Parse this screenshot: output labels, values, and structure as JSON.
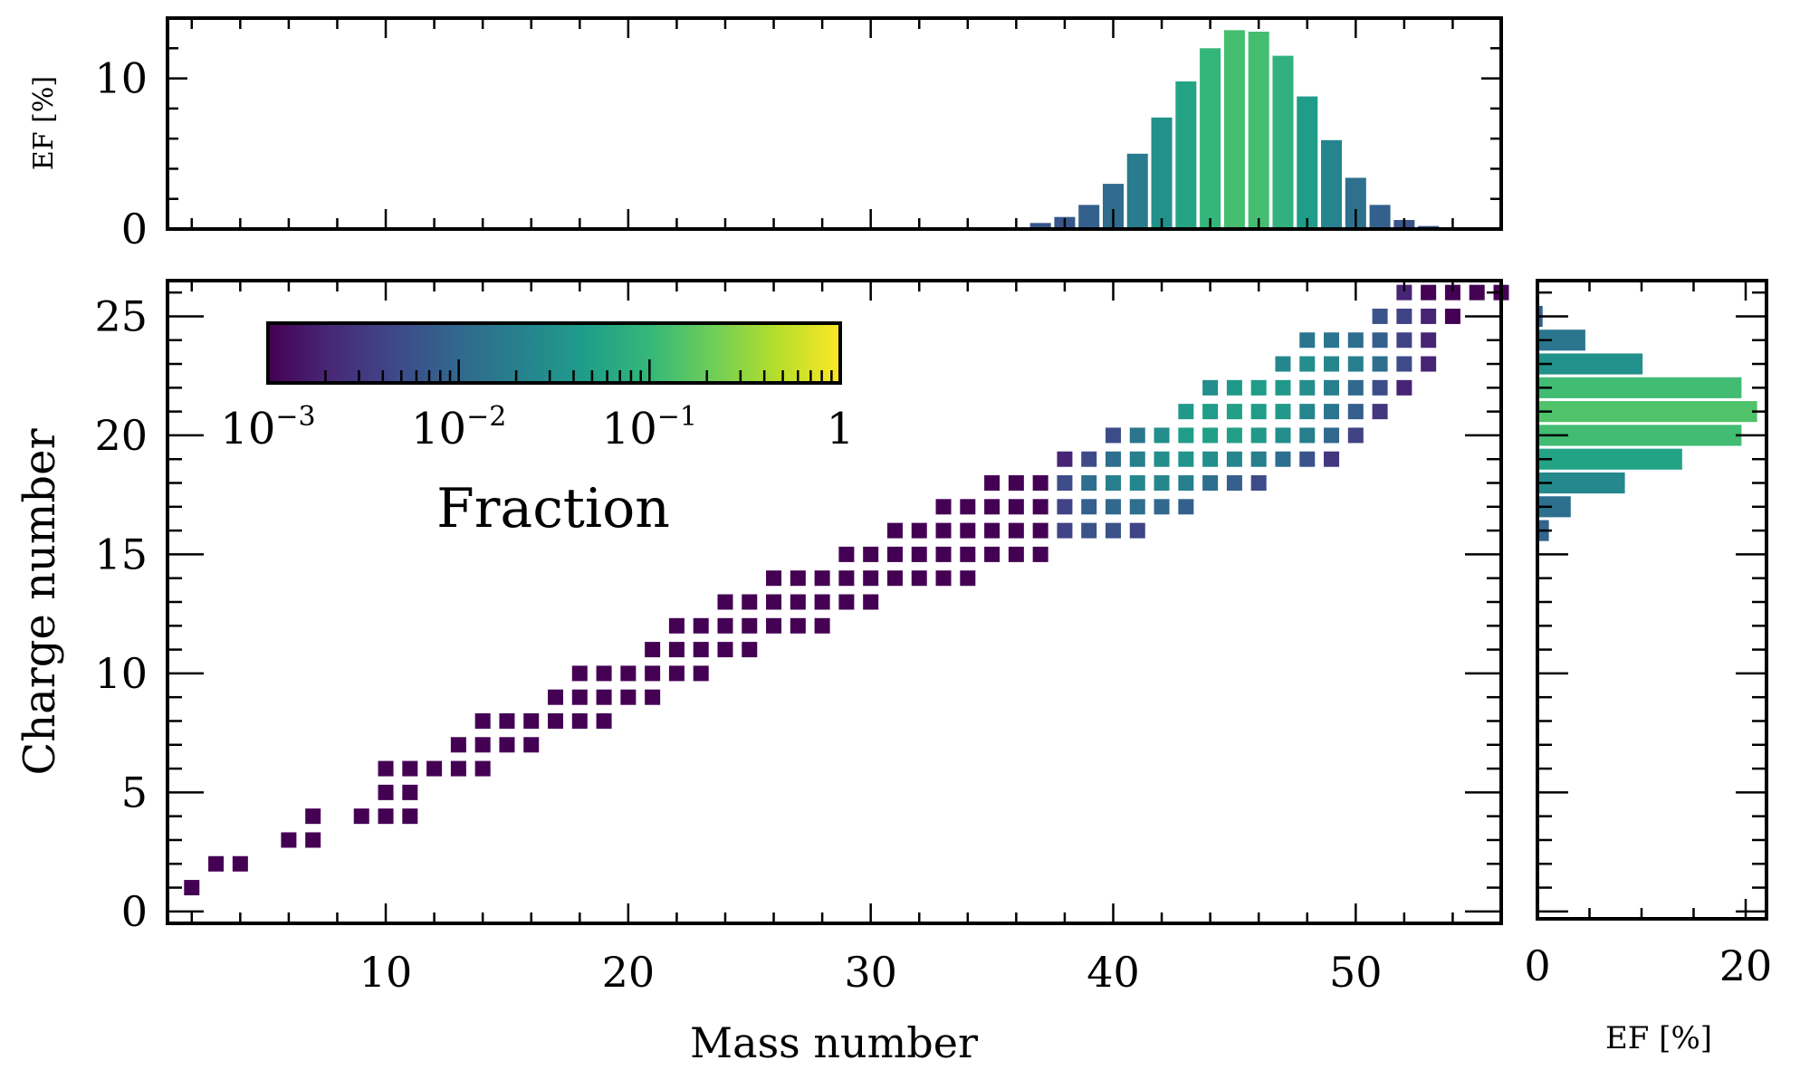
{
  "chart_data": [
    {
      "type": "bar",
      "panel": "top-histogram",
      "ylabel": "EF [%]",
      "xlim": [
        1,
        56
      ],
      "ylim": [
        0,
        14
      ],
      "yticks": [
        0,
        10
      ],
      "categories": [
        36,
        37,
        38,
        39,
        40,
        41,
        42,
        43,
        44,
        45,
        46,
        47,
        48,
        49,
        50,
        51,
        52,
        53
      ],
      "values": [
        0.1,
        0.4,
        0.8,
        1.6,
        3.0,
        5.0,
        7.4,
        9.8,
        12.0,
        13.2,
        13.1,
        11.5,
        8.8,
        5.9,
        3.4,
        1.6,
        0.6,
        0.2
      ]
    },
    {
      "type": "heatmap",
      "panel": "main",
      "xlabel": "Mass number",
      "ylabel": "Charge number",
      "xlim": [
        1,
        56
      ],
      "ylim": [
        -0.5,
        26.5
      ],
      "xticks": [
        10,
        20,
        30,
        40,
        50
      ],
      "yticks": [
        0,
        5,
        10,
        15,
        20,
        25
      ],
      "points_format": "[mass_number, charge_number, fraction]",
      "points": [
        [
          2,
          1,
          0.001
        ],
        [
          3,
          2,
          0.001
        ],
        [
          4,
          2,
          0.001
        ],
        [
          6,
          3,
          0.001
        ],
        [
          7,
          3,
          0.001
        ],
        [
          7,
          4,
          0.001
        ],
        [
          9,
          4,
          0.001
        ],
        [
          10,
          4,
          0.001
        ],
        [
          11,
          4,
          0.001
        ],
        [
          10,
          5,
          0.001
        ],
        [
          11,
          5,
          0.001
        ],
        [
          10,
          6,
          0.001
        ],
        [
          11,
          6,
          0.001
        ],
        [
          12,
          6,
          0.001
        ],
        [
          13,
          6,
          0.001
        ],
        [
          14,
          6,
          0.001
        ],
        [
          13,
          7,
          0.001
        ],
        [
          14,
          7,
          0.001
        ],
        [
          15,
          7,
          0.001
        ],
        [
          16,
          7,
          0.001
        ],
        [
          14,
          8,
          0.001
        ],
        [
          15,
          8,
          0.001
        ],
        [
          16,
          8,
          0.001
        ],
        [
          17,
          8,
          0.001
        ],
        [
          18,
          8,
          0.001
        ],
        [
          19,
          8,
          0.001
        ],
        [
          17,
          9,
          0.001
        ],
        [
          18,
          9,
          0.001
        ],
        [
          19,
          9,
          0.001
        ],
        [
          20,
          9,
          0.001
        ],
        [
          21,
          9,
          0.001
        ],
        [
          18,
          10,
          0.001
        ],
        [
          19,
          10,
          0.001
        ],
        [
          20,
          10,
          0.001
        ],
        [
          21,
          10,
          0.001
        ],
        [
          22,
          10,
          0.001
        ],
        [
          23,
          10,
          0.001
        ],
        [
          21,
          11,
          0.001
        ],
        [
          22,
          11,
          0.001
        ],
        [
          23,
          11,
          0.001
        ],
        [
          24,
          11,
          0.001
        ],
        [
          25,
          11,
          0.001
        ],
        [
          22,
          12,
          0.001
        ],
        [
          23,
          12,
          0.001
        ],
        [
          24,
          12,
          0.001
        ],
        [
          25,
          12,
          0.001
        ],
        [
          26,
          12,
          0.001
        ],
        [
          27,
          12,
          0.001
        ],
        [
          28,
          12,
          0.001
        ],
        [
          24,
          13,
          0.001
        ],
        [
          25,
          13,
          0.001
        ],
        [
          26,
          13,
          0.001
        ],
        [
          27,
          13,
          0.001
        ],
        [
          28,
          13,
          0.001
        ],
        [
          29,
          13,
          0.001
        ],
        [
          30,
          13,
          0.001
        ],
        [
          26,
          14,
          0.001
        ],
        [
          27,
          14,
          0.001
        ],
        [
          28,
          14,
          0.001
        ],
        [
          29,
          14,
          0.001
        ],
        [
          30,
          14,
          0.001
        ],
        [
          31,
          14,
          0.001
        ],
        [
          32,
          14,
          0.001
        ],
        [
          33,
          14,
          0.001
        ],
        [
          34,
          14,
          0.001
        ],
        [
          29,
          15,
          0.001
        ],
        [
          30,
          15,
          0.001
        ],
        [
          31,
          15,
          0.001
        ],
        [
          32,
          15,
          0.001
        ],
        [
          33,
          15,
          0.001
        ],
        [
          34,
          15,
          0.001
        ],
        [
          35,
          15,
          0.001
        ],
        [
          36,
          15,
          0.001
        ],
        [
          37,
          15,
          0.001
        ],
        [
          31,
          16,
          0.001
        ],
        [
          32,
          16,
          0.001
        ],
        [
          33,
          16,
          0.001
        ],
        [
          34,
          16,
          0.001
        ],
        [
          35,
          16,
          0.001
        ],
        [
          36,
          16,
          0.001
        ],
        [
          37,
          16,
          0.001
        ],
        [
          38,
          16,
          0.004
        ],
        [
          39,
          16,
          0.006
        ],
        [
          40,
          16,
          0.006
        ],
        [
          41,
          16,
          0.004
        ],
        [
          33,
          17,
          0.001
        ],
        [
          34,
          17,
          0.001
        ],
        [
          35,
          17,
          0.001
        ],
        [
          36,
          17,
          0.001
        ],
        [
          37,
          17,
          0.001
        ],
        [
          38,
          17,
          0.004
        ],
        [
          39,
          17,
          0.008
        ],
        [
          40,
          17,
          0.01
        ],
        [
          41,
          17,
          0.012
        ],
        [
          42,
          17,
          0.01
        ],
        [
          43,
          17,
          0.008
        ],
        [
          35,
          18,
          0.001
        ],
        [
          36,
          18,
          0.001
        ],
        [
          37,
          18,
          0.001
        ],
        [
          38,
          18,
          0.005
        ],
        [
          39,
          18,
          0.012
        ],
        [
          40,
          18,
          0.02
        ],
        [
          41,
          18,
          0.025
        ],
        [
          42,
          18,
          0.025
        ],
        [
          43,
          18,
          0.02
        ],
        [
          44,
          18,
          0.012
        ],
        [
          45,
          18,
          0.008
        ],
        [
          46,
          18,
          0.005
        ],
        [
          38,
          19,
          0.002
        ],
        [
          39,
          19,
          0.005
        ],
        [
          40,
          19,
          0.012
        ],
        [
          41,
          19,
          0.02
        ],
        [
          42,
          19,
          0.03
        ],
        [
          43,
          19,
          0.035
        ],
        [
          44,
          19,
          0.03
        ],
        [
          45,
          19,
          0.025
        ],
        [
          46,
          19,
          0.02
        ],
        [
          47,
          19,
          0.012
        ],
        [
          48,
          19,
          0.006
        ],
        [
          49,
          19,
          0.003
        ],
        [
          40,
          20,
          0.005
        ],
        [
          41,
          20,
          0.015
        ],
        [
          42,
          20,
          0.03
        ],
        [
          43,
          20,
          0.045
        ],
        [
          44,
          20,
          0.05
        ],
        [
          45,
          20,
          0.05
        ],
        [
          46,
          20,
          0.04
        ],
        [
          47,
          20,
          0.03
        ],
        [
          48,
          20,
          0.02
        ],
        [
          49,
          20,
          0.01
        ],
        [
          50,
          20,
          0.004
        ],
        [
          43,
          21,
          0.04
        ],
        [
          44,
          21,
          0.045
        ],
        [
          45,
          21,
          0.05
        ],
        [
          46,
          21,
          0.045
        ],
        [
          47,
          21,
          0.04
        ],
        [
          48,
          21,
          0.025
        ],
        [
          49,
          21,
          0.015
        ],
        [
          50,
          21,
          0.008
        ],
        [
          51,
          21,
          0.003
        ],
        [
          44,
          22,
          0.03
        ],
        [
          45,
          22,
          0.04
        ],
        [
          46,
          22,
          0.045
        ],
        [
          47,
          22,
          0.04
        ],
        [
          48,
          22,
          0.03
        ],
        [
          49,
          22,
          0.02
        ],
        [
          50,
          22,
          0.01
        ],
        [
          51,
          22,
          0.005
        ],
        [
          52,
          22,
          0.002
        ],
        [
          47,
          23,
          0.025
        ],
        [
          48,
          23,
          0.03
        ],
        [
          49,
          23,
          0.025
        ],
        [
          50,
          23,
          0.02
        ],
        [
          51,
          23,
          0.012
        ],
        [
          52,
          23,
          0.005
        ],
        [
          53,
          23,
          0.002
        ],
        [
          48,
          24,
          0.015
        ],
        [
          49,
          24,
          0.015
        ],
        [
          50,
          24,
          0.012
        ],
        [
          51,
          24,
          0.008
        ],
        [
          52,
          24,
          0.004
        ],
        [
          53,
          24,
          0.002
        ],
        [
          51,
          25,
          0.006
        ],
        [
          52,
          25,
          0.004
        ],
        [
          53,
          25,
          0.002
        ],
        [
          54,
          25,
          0.001
        ],
        [
          52,
          26,
          0.002
        ],
        [
          53,
          26,
          0.001
        ],
        [
          54,
          26,
          0.001
        ],
        [
          55,
          26,
          0.001
        ],
        [
          56,
          26,
          0.001
        ]
      ]
    },
    {
      "type": "bar",
      "panel": "right-histogram",
      "orientation": "horizontal",
      "xlabel": "EF [%]",
      "xlim": [
        0,
        22
      ],
      "xticks": [
        0,
        20
      ],
      "categories": [
        16,
        17,
        18,
        19,
        20,
        21,
        22,
        23,
        24,
        25
      ],
      "values": [
        1.1,
        3.2,
        8.4,
        13.9,
        19.6,
        21.1,
        19.6,
        10.1,
        4.6,
        0.5
      ]
    }
  ],
  "colorbar": {
    "label": "Fraction",
    "scale": "log",
    "range": [
      0.001,
      1
    ],
    "tick_labels": [
      {
        "base": "10",
        "exp": "−3"
      },
      {
        "base": "10",
        "exp": "−2"
      },
      {
        "base": "10",
        "exp": "−1"
      },
      {
        "base": "1",
        "exp": ""
      }
    ],
    "colormap": "viridis",
    "stops": [
      "#440154",
      "#482878",
      "#3e4989",
      "#31688e",
      "#26828e",
      "#1f9e89",
      "#35b779",
      "#6ece58",
      "#b5de2b",
      "#fde725"
    ]
  }
}
